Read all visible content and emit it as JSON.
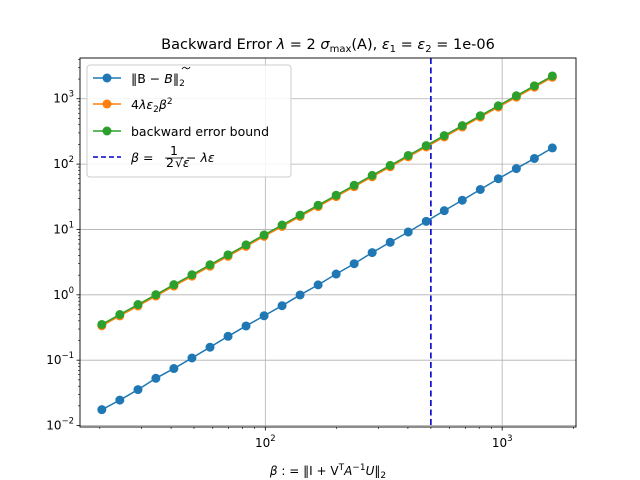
{
  "chart_data": {
    "type": "line",
    "title_parts": {
      "prefix": "Backward Error ",
      "lambda": "λ",
      "eq1": " = 2 ",
      "sigma": "σ",
      "max": "max",
      "arg": "(A), ",
      "eps": "ε",
      "sub1": "1",
      "eq2": " = ",
      "sub2": "2",
      "suffix": " = 1e-06"
    },
    "xlabel_parts": {
      "beta": "β",
      "assign": " : = ",
      "norm_open": "‖I + V",
      "sup_T": "T",
      "a": "A",
      "sup_inv": "−1",
      "u": "U",
      "norm_close": "‖",
      "sub_2": "2"
    },
    "x_scale": "log",
    "y_scale": "log",
    "xlim": [
      16.5,
      2050
    ],
    "ylim": [
      0.0095,
      4200
    ],
    "grid": true,
    "legend_position": "upper-left",
    "xticks": [
      {
        "value": 100,
        "base": "10",
        "exp": "2"
      },
      {
        "value": 1000,
        "base": "10",
        "exp": "3"
      }
    ],
    "yticks": [
      {
        "value": 0.01,
        "base": "10",
        "exp": "−2"
      },
      {
        "value": 0.1,
        "base": "10",
        "exp": "−1"
      },
      {
        "value": 1,
        "base": "10",
        "exp": "0"
      },
      {
        "value": 10,
        "base": "10",
        "exp": "1"
      },
      {
        "value": 100,
        "base": "10",
        "exp": "2"
      },
      {
        "value": 1000,
        "base": "10",
        "exp": "3"
      }
    ],
    "x": [
      20.4,
      24.3,
      29.0,
      34.5,
      41.1,
      49.0,
      58.4,
      69.6,
      82.9,
      98.8,
      117.7,
      140.2,
      167.1,
      199.1,
      237.2,
      282.6,
      336.7,
      401.2,
      478.0,
      569.6,
      678.7,
      808.6,
      963.4,
      1148,
      1368,
      1629
    ],
    "vline_x": 500,
    "series": [
      {
        "key": "s1",
        "legend_parts": {
          "open": "‖B − ",
          "tilde": "B",
          "close": "‖",
          "sub": "2"
        },
        "color": "#1f77b4",
        "values": [
          0.0175,
          0.0245,
          0.0355,
          0.0528,
          0.0745,
          0.108,
          0.158,
          0.232,
          0.334,
          0.478,
          0.682,
          0.995,
          1.42,
          2.08,
          2.99,
          4.43,
          6.37,
          9.15,
          13.3,
          19.4,
          28.0,
          40.9,
          59.7,
          85.4,
          122,
          177
        ]
      },
      {
        "key": "s2",
        "legend_parts": {
          "coef": "4",
          "lambda": "λ",
          "eps": "ε",
          "sub": "2",
          "beta": "β",
          "sup": "2"
        },
        "color": "#ff7f0e",
        "values": [
          0.335,
          0.476,
          0.676,
          0.958,
          1.36,
          1.93,
          2.74,
          3.89,
          5.52,
          7.84,
          11.1,
          15.8,
          22.4,
          31.8,
          45.1,
          64.0,
          90.9,
          129,
          183,
          260,
          369,
          524,
          744,
          1056,
          1500,
          2127
        ]
      },
      {
        "key": "s3",
        "legend": "backward error bound",
        "color": "#2ca02c",
        "values": [
          0.352,
          0.5,
          0.71,
          1.005,
          1.43,
          2.03,
          2.88,
          4.09,
          5.8,
          8.24,
          11.7,
          16.6,
          23.5,
          33.4,
          47.4,
          67.2,
          95.5,
          135.5,
          192,
          273,
          387,
          550,
          781,
          1109,
          1575,
          2230
        ]
      },
      {
        "key": "vline",
        "legend_parts": {
          "beta": "β",
          "eq": " = ",
          "num": "1",
          "den_pre": "2",
          "den_eps": "ε",
          "minus": " − ",
          "lambda": "λ",
          "eps": "ε"
        },
        "color": "#0000cc",
        "style": "dashed"
      }
    ]
  }
}
